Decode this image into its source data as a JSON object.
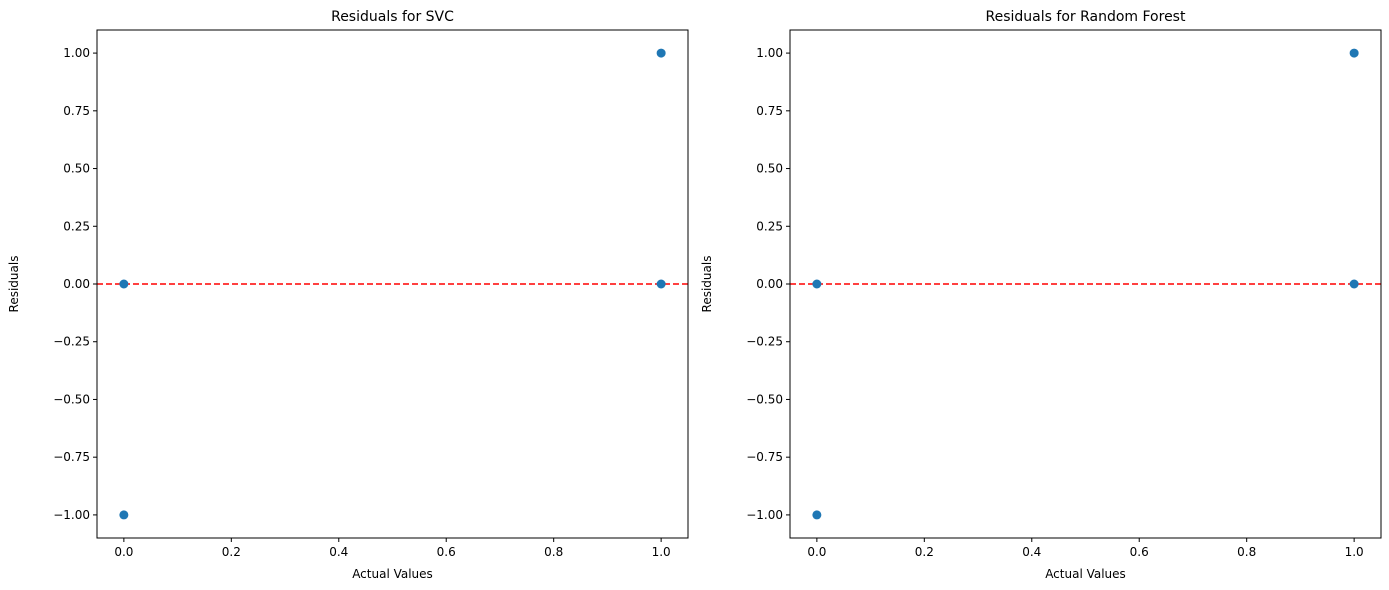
{
  "chart_data": [
    {
      "type": "scatter",
      "title": "Residuals for SVC",
      "xlabel": "Actual Values",
      "ylabel": "Residuals",
      "xlim": [
        -0.05,
        1.05
      ],
      "ylim": [
        -1.1,
        1.1
      ],
      "xticks": [
        0.0,
        0.2,
        0.4,
        0.6,
        0.8,
        1.0
      ],
      "xtick_labels": [
        "0.0",
        "0.2",
        "0.4",
        "0.6",
        "0.8",
        "1.0"
      ],
      "yticks": [
        1.0,
        0.75,
        0.5,
        0.25,
        0.0,
        -0.25,
        -0.5,
        -0.75,
        -1.0
      ],
      "ytick_labels": [
        "1.00",
        "0.75",
        "0.50",
        "0.25",
        "0.00",
        "−0.25",
        "−0.50",
        "−0.75",
        "−1.00"
      ],
      "points": [
        {
          "x": 0,
          "y": 0
        },
        {
          "x": 0,
          "y": -1
        },
        {
          "x": 1,
          "y": 0
        },
        {
          "x": 1,
          "y": 1
        }
      ],
      "reference_line": {
        "y": 0,
        "style": "dashed",
        "color": "#ff0000"
      },
      "marker_color": "#1f77b4",
      "grid": false
    },
    {
      "type": "scatter",
      "title": "Residuals for Random Forest",
      "xlabel": "Actual Values",
      "ylabel": "Residuals",
      "xlim": [
        -0.05,
        1.05
      ],
      "ylim": [
        -1.1,
        1.1
      ],
      "xticks": [
        0.0,
        0.2,
        0.4,
        0.6,
        0.8,
        1.0
      ],
      "xtick_labels": [
        "0.0",
        "0.2",
        "0.4",
        "0.6",
        "0.8",
        "1.0"
      ],
      "yticks": [
        1.0,
        0.75,
        0.5,
        0.25,
        0.0,
        -0.25,
        -0.5,
        -0.75,
        -1.0
      ],
      "ytick_labels": [
        "1.00",
        "0.75",
        "0.50",
        "0.25",
        "0.00",
        "−0.25",
        "−0.50",
        "−0.75",
        "−1.00"
      ],
      "points": [
        {
          "x": 0,
          "y": 0
        },
        {
          "x": 0,
          "y": -1
        },
        {
          "x": 1,
          "y": 0
        },
        {
          "x": 1,
          "y": 1
        }
      ],
      "reference_line": {
        "y": 0,
        "style": "dashed",
        "color": "#ff0000"
      },
      "marker_color": "#1f77b4",
      "grid": false
    }
  ]
}
